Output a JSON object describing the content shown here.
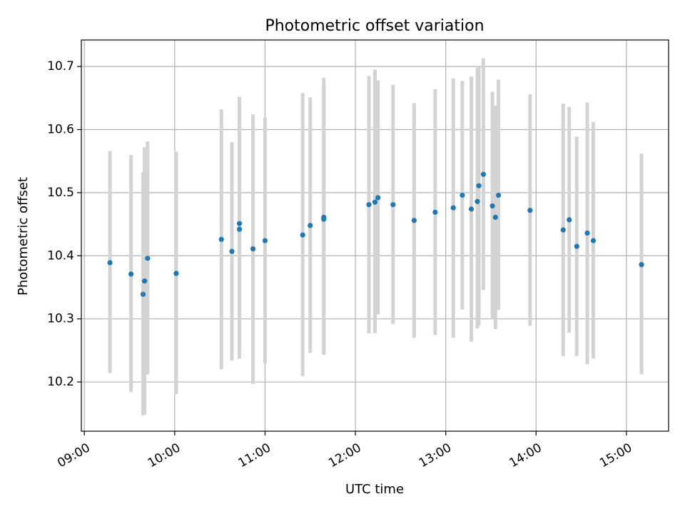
{
  "chart_data": {
    "type": "scatter",
    "title": "Photometric offset variation",
    "xlabel": "UTC time",
    "ylabel": "Photometric offset",
    "x_unit": "UTC time (HH:MM)",
    "xlim": [
      "08:58",
      "15:28"
    ],
    "ylim": [
      10.122,
      10.742
    ],
    "x_ticks": [
      "09:00",
      "10:00",
      "11:00",
      "12:00",
      "13:00",
      "14:00",
      "15:00"
    ],
    "y_ticks": [
      10.2,
      10.3,
      10.4,
      10.5,
      10.6,
      10.7
    ],
    "y_tick_labels": [
      "10.2",
      "10.3",
      "10.4",
      "10.5",
      "10.6",
      "10.7"
    ],
    "grid": true,
    "colors": {
      "point": "#1f77b4",
      "errorbar": "#d3d3d3",
      "grid": "#b0b0b0"
    },
    "points": [
      {
        "x": "09:17",
        "y": 10.389,
        "ylo": 10.214,
        "yhi": 10.566
      },
      {
        "x": "09:31",
        "y": 10.371,
        "ylo": 10.184,
        "yhi": 10.56
      },
      {
        "x": "09:39",
        "y": 10.339,
        "ylo": 10.147,
        "yhi": 10.532
      },
      {
        "x": "09:40",
        "y": 10.36,
        "ylo": 10.148,
        "yhi": 10.572
      },
      {
        "x": "09:42",
        "y": 10.396,
        "ylo": 10.212,
        "yhi": 10.581
      },
      {
        "x": "10:01",
        "y": 10.372,
        "ylo": 10.181,
        "yhi": 10.565
      },
      {
        "x": "10:31",
        "y": 10.426,
        "ylo": 10.22,
        "yhi": 10.632
      },
      {
        "x": "10:38",
        "y": 10.407,
        "ylo": 10.234,
        "yhi": 10.58
      },
      {
        "x": "10:43",
        "y": 10.442,
        "ylo": 10.237,
        "yhi": 10.647
      },
      {
        "x": "10:43",
        "y": 10.451,
        "ylo": 10.25,
        "yhi": 10.652
      },
      {
        "x": "10:52",
        "y": 10.411,
        "ylo": 10.197,
        "yhi": 10.624
      },
      {
        "x": "11:00",
        "y": 10.424,
        "ylo": 10.229,
        "yhi": 10.619
      },
      {
        "x": "11:25",
        "y": 10.433,
        "ylo": 10.209,
        "yhi": 10.658
      },
      {
        "x": "11:30",
        "y": 10.448,
        "ylo": 10.246,
        "yhi": 10.651
      },
      {
        "x": "11:39",
        "y": 10.461,
        "ylo": 10.243,
        "yhi": 10.682
      },
      {
        "x": "11:39",
        "y": 10.458,
        "ylo": 10.247,
        "yhi": 10.669
      },
      {
        "x": "12:09",
        "y": 10.481,
        "ylo": 10.277,
        "yhi": 10.685
      },
      {
        "x": "12:13",
        "y": 10.485,
        "ylo": 10.277,
        "yhi": 10.695
      },
      {
        "x": "12:15",
        "y": 10.492,
        "ylo": 10.307,
        "yhi": 10.678
      },
      {
        "x": "12:25",
        "y": 10.481,
        "ylo": 10.292,
        "yhi": 10.671
      },
      {
        "x": "12:39",
        "y": 10.456,
        "ylo": 10.27,
        "yhi": 10.642
      },
      {
        "x": "12:53",
        "y": 10.469,
        "ylo": 10.274,
        "yhi": 10.664
      },
      {
        "x": "13:05",
        "y": 10.476,
        "ylo": 10.27,
        "yhi": 10.681
      },
      {
        "x": "13:11",
        "y": 10.496,
        "ylo": 10.315,
        "yhi": 10.677
      },
      {
        "x": "13:17",
        "y": 10.474,
        "ylo": 10.264,
        "yhi": 10.684
      },
      {
        "x": "13:21",
        "y": 10.486,
        "ylo": 10.285,
        "yhi": 10.698
      },
      {
        "x": "13:22",
        "y": 10.511,
        "ylo": 10.29,
        "yhi": 10.7
      },
      {
        "x": "13:25",
        "y": 10.529,
        "ylo": 10.346,
        "yhi": 10.713
      },
      {
        "x": "13:31",
        "y": 10.479,
        "ylo": 10.299,
        "yhi": 10.66
      },
      {
        "x": "13:33",
        "y": 10.461,
        "ylo": 10.284,
        "yhi": 10.638
      },
      {
        "x": "13:35",
        "y": 10.496,
        "ylo": 10.314,
        "yhi": 10.679
      },
      {
        "x": "13:56",
        "y": 10.472,
        "ylo": 10.289,
        "yhi": 10.656
      },
      {
        "x": "14:18",
        "y": 10.441,
        "ylo": 10.241,
        "yhi": 10.641
      },
      {
        "x": "14:22",
        "y": 10.457,
        "ylo": 10.278,
        "yhi": 10.636
      },
      {
        "x": "14:27",
        "y": 10.415,
        "ylo": 10.241,
        "yhi": 10.589
      },
      {
        "x": "14:34",
        "y": 10.436,
        "ylo": 10.228,
        "yhi": 10.643
      },
      {
        "x": "14:38",
        "y": 10.424,
        "ylo": 10.237,
        "yhi": 10.612
      },
      {
        "x": "15:10",
        "y": 10.386,
        "ylo": 10.212,
        "yhi": 10.562
      }
    ]
  }
}
